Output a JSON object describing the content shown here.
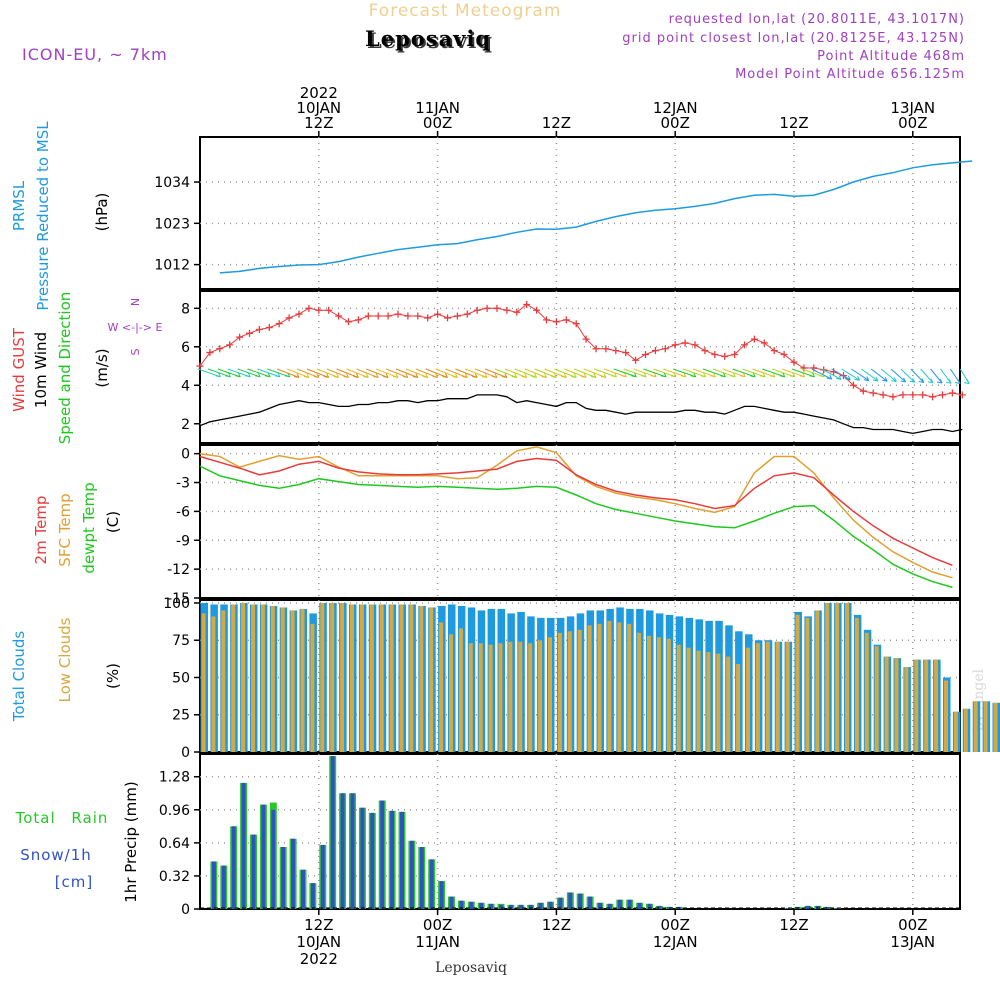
{
  "header": {
    "title_small": "Forecast Meteogram",
    "location": "Leposaviq",
    "model": "ICON-EU, ~ 7km",
    "requested": "requested lon,lat (20.8011E, 43.1017N)",
    "grid_point": "grid point closest lon,lat (20.8125E, 43.125N)",
    "point_alt": "Point Altitude 468m",
    "model_alt": "Model Point Altitude 656.125m",
    "footer_location": "Leposaviq",
    "credit": "by Angel"
  },
  "time_axis": {
    "top": [
      {
        "t": 12,
        "lines": [
          "2022",
          "10JAN",
          "12Z"
        ]
      },
      {
        "t": 24,
        "lines": [
          "11JAN",
          "00Z"
        ]
      },
      {
        "t": 36,
        "lines": [
          "12Z"
        ]
      },
      {
        "t": 48,
        "lines": [
          "12JAN",
          "00Z"
        ]
      },
      {
        "t": 60,
        "lines": [
          "12Z"
        ]
      },
      {
        "t": 72,
        "lines": [
          "13JAN",
          "00Z"
        ]
      }
    ],
    "bottom": [
      {
        "t": 12,
        "lines": [
          "12Z",
          "10JAN",
          "2022"
        ]
      },
      {
        "t": 24,
        "lines": [
          "00Z",
          "11JAN"
        ]
      },
      {
        "t": 36,
        "lines": [
          "12Z"
        ]
      },
      {
        "t": 48,
        "lines": [
          "00Z",
          "12JAN"
        ]
      },
      {
        "t": 60,
        "lines": [
          "12Z"
        ]
      },
      {
        "t": 72,
        "lines": [
          "00Z",
          "13JAN"
        ]
      }
    ]
  },
  "labels": {
    "p1": {
      "a": "PRMSL",
      "b": "Pressure Reduced to MSL",
      "unit": "(hPa)"
    },
    "p2": {
      "a": "Wind GUST",
      "b": "10m Wind",
      "c": "Speed and Direction",
      "unit": "(m/s)",
      "compass_n": "N",
      "compass_we": "W <-|-> E",
      "compass_s": "S"
    },
    "p3": {
      "a": "2m Temp",
      "b": "SFC Temp",
      "c": "dewpt Temp",
      "unit": "(C)"
    },
    "p4": {
      "a": "Total Clouds",
      "b": "Low Clouds",
      "unit": "(%)"
    },
    "p5": {
      "a": "Total Rain",
      "b": "Snow/1h",
      "c": "[cm]",
      "unit": "1hr Precip (mm)"
    }
  },
  "colors": {
    "pressure": "#1e9be0",
    "gust": "#e83c3c",
    "wind": "#000000",
    "temp2m": "#e83c3c",
    "sfc": "#e0a030",
    "dewpt": "#1ec81e",
    "total_clouds": "#1e9be0",
    "low_clouds": "#d8a840",
    "rain": "#28c828",
    "snow": "#3050c8",
    "meta": "#a040c0",
    "title_small": "#f0d090"
  },
  "chart_data": [
    {
      "type": "line",
      "name": "PRMSL",
      "ylabel": "(hPa)",
      "ylim": [
        1005.5,
        1046
      ],
      "yticks": [
        1012,
        1023,
        1034
      ],
      "x_hours": [
        2,
        4,
        6,
        8,
        10,
        12,
        14,
        16,
        18,
        20,
        22,
        24,
        26,
        28,
        30,
        32,
        34,
        36,
        38,
        40,
        42,
        44,
        46,
        48,
        50,
        52,
        54,
        56,
        58,
        60,
        62,
        64,
        66,
        68,
        70,
        72,
        74,
        76,
        78
      ],
      "values": [
        1009.8,
        1010.2,
        1011,
        1011.5,
        1011.9,
        1012,
        1012.8,
        1014,
        1015,
        1016,
        1016.6,
        1017.3,
        1017.6,
        1018.6,
        1019.5,
        1020.6,
        1021.5,
        1021.4,
        1022,
        1023.5,
        1024.8,
        1025.8,
        1026.5,
        1026.9,
        1027.5,
        1028.3,
        1029.6,
        1030.5,
        1030.7,
        1030.2,
        1030.5,
        1032,
        1034,
        1035.5,
        1036.5,
        1037.8,
        1038.6,
        1039.1,
        1039.6
      ]
    },
    {
      "type": "line",
      "name": "Wind",
      "ylabel": "(m/s)",
      "ylim": [
        1,
        8.9
      ],
      "yticks": [
        2,
        4,
        6,
        8
      ],
      "x_hours": [
        0,
        1,
        2,
        3,
        4,
        5,
        6,
        7,
        8,
        9,
        10,
        11,
        12,
        13,
        14,
        15,
        16,
        17,
        18,
        19,
        20,
        21,
        22,
        23,
        24,
        25,
        26,
        27,
        28,
        29,
        30,
        31,
        32,
        33,
        34,
        35,
        36,
        37,
        38,
        39,
        40,
        41,
        42,
        43,
        44,
        45,
        46,
        47,
        48,
        49,
        50,
        51,
        52,
        53,
        54,
        55,
        56,
        57,
        58,
        59,
        60,
        61,
        62,
        63,
        64,
        65,
        66,
        67,
        68,
        69,
        70,
        71,
        72,
        73,
        74,
        75,
        76,
        77
      ],
      "gust": [
        5.0,
        5.7,
        5.9,
        6.1,
        6.5,
        6.7,
        6.9,
        7.0,
        7.2,
        7.5,
        7.7,
        8.0,
        7.9,
        7.9,
        7.6,
        7.3,
        7.4,
        7.6,
        7.6,
        7.6,
        7.7,
        7.6,
        7.6,
        7.5,
        7.7,
        7.5,
        7.6,
        7.7,
        7.9,
        8.0,
        8.0,
        7.9,
        7.8,
        8.2,
        7.9,
        7.4,
        7.3,
        7.4,
        7.2,
        6.4,
        5.9,
        5.9,
        5.8,
        5.7,
        5.3,
        5.6,
        5.8,
        5.9,
        6.1,
        6.2,
        6.1,
        5.8,
        5.6,
        5.5,
        5.6,
        6.1,
        6.4,
        6.2,
        5.8,
        5.6,
        5.2,
        4.9,
        4.9,
        4.8,
        4.7,
        4.5,
        4.0,
        3.7,
        3.6,
        3.5,
        3.4,
        3.5,
        3.5,
        3.5,
        3.4,
        3.5,
        3.6,
        3.5
      ],
      "wind": [
        1.9,
        2.1,
        2.2,
        2.3,
        2.4,
        2.5,
        2.6,
        2.8,
        3.0,
        3.1,
        3.2,
        3.1,
        3.1,
        3.0,
        2.9,
        2.9,
        3.0,
        3.0,
        3.1,
        3.1,
        3.2,
        3.2,
        3.1,
        3.2,
        3.2,
        3.3,
        3.3,
        3.3,
        3.5,
        3.5,
        3.5,
        3.4,
        3.1,
        3.2,
        3.1,
        3.0,
        2.9,
        3.1,
        3.1,
        2.8,
        2.7,
        2.7,
        2.6,
        2.5,
        2.6,
        2.6,
        2.6,
        2.6,
        2.6,
        2.7,
        2.7,
        2.6,
        2.6,
        2.5,
        2.7,
        2.9,
        2.9,
        2.8,
        2.7,
        2.6,
        2.6,
        2.5,
        2.4,
        2.3,
        2.2,
        2.0,
        1.8,
        1.8,
        1.7,
        1.7,
        1.7,
        1.6,
        1.5,
        1.6,
        1.7,
        1.7,
        1.6,
        1.7
      ]
    },
    {
      "type": "line",
      "name": "Temperature",
      "ylabel": "(C)",
      "ylim": [
        -15,
        0.9
      ],
      "yticks": [
        0,
        -3,
        -6,
        -9,
        -12,
        -15
      ],
      "x_hours": [
        0,
        2,
        4,
        6,
        8,
        10,
        12,
        14,
        16,
        18,
        20,
        22,
        24,
        26,
        28,
        30,
        32,
        34,
        36,
        38,
        40,
        42,
        44,
        46,
        48,
        50,
        52,
        54,
        56,
        58,
        60,
        62,
        64,
        66,
        68,
        70,
        72,
        74,
        76
      ],
      "temp2m": [
        -0.3,
        -0.9,
        -1.5,
        -2.2,
        -1.8,
        -1.1,
        -0.8,
        -1.5,
        -1.9,
        -2.1,
        -2.2,
        -2.2,
        -2.1,
        -2.0,
        -1.8,
        -1.6,
        -0.8,
        -0.5,
        -0.7,
        -2.2,
        -3.2,
        -3.9,
        -4.3,
        -4.6,
        -4.8,
        -5.2,
        -5.7,
        -5.4,
        -3.6,
        -2.3,
        -2.0,
        -2.5,
        -4.3,
        -6.0,
        -7.5,
        -8.8,
        -9.8,
        -10.8,
        -11.6
      ],
      "sfc": [
        0.0,
        -0.3,
        -1.4,
        -0.8,
        -0.2,
        -0.6,
        -0.3,
        -1.4,
        -2.3,
        -2.3,
        -2.3,
        -2.3,
        -2.3,
        -2.6,
        -2.5,
        -1.2,
        0.3,
        0.7,
        0.1,
        -2.3,
        -3.4,
        -4.1,
        -4.5,
        -4.8,
        -5.2,
        -5.7,
        -6.1,
        -5.5,
        -2.0,
        -0.3,
        -0.3,
        -2.0,
        -4.6,
        -6.9,
        -8.7,
        -10.2,
        -11.3,
        -12.3,
        -12.9
      ],
      "dewpt": [
        -1.3,
        -2.3,
        -2.8,
        -3.3,
        -3.6,
        -3.2,
        -2.6,
        -2.9,
        -3.2,
        -3.3,
        -3.4,
        -3.5,
        -3.4,
        -3.5,
        -3.6,
        -3.7,
        -3.6,
        -3.4,
        -3.5,
        -4.3,
        -5.2,
        -5.8,
        -6.2,
        -6.6,
        -7.0,
        -7.3,
        -7.6,
        -7.7,
        -7.0,
        -6.2,
        -5.5,
        -5.4,
        -6.9,
        -8.6,
        -10.0,
        -11.5,
        -12.5,
        -13.3,
        -13.9
      ]
    },
    {
      "type": "bar",
      "name": "Clouds",
      "ylabel": "(%)",
      "ylim": [
        0,
        102
      ],
      "yticks": [
        0,
        25,
        50,
        75,
        100
      ],
      "x_hours_start": 0,
      "total": [
        100,
        99,
        99,
        99,
        100,
        99,
        99,
        98,
        97,
        95,
        96,
        93,
        100,
        100,
        100,
        99,
        99,
        99,
        99,
        99,
        99,
        99,
        98,
        97,
        98,
        99,
        98,
        97,
        95,
        96,
        96,
        93,
        94,
        91,
        90,
        90,
        90,
        91,
        93,
        95,
        95,
        96,
        97,
        96,
        96,
        95,
        93,
        92,
        91,
        90,
        89,
        88,
        88,
        85,
        81,
        79,
        75,
        75,
        74,
        74,
        94,
        91,
        95,
        100,
        100,
        100,
        92,
        82,
        72,
        64,
        63,
        57,
        62,
        62,
        62,
        50,
        27,
        29,
        34,
        34,
        33
      ],
      "low": [
        93,
        91,
        95,
        99,
        100,
        99,
        99,
        98,
        97,
        95,
        96,
        86,
        100,
        100,
        100,
        99,
        99,
        99,
        99,
        99,
        99,
        99,
        98,
        97,
        87,
        79,
        83,
        73,
        73,
        72,
        73,
        74,
        74,
        73,
        75,
        77,
        80,
        81,
        82,
        85,
        86,
        88,
        87,
        86,
        80,
        78,
        77,
        76,
        72,
        70,
        68,
        67,
        66,
        64,
        59,
        70,
        73,
        74,
        74,
        74,
        92,
        90,
        95,
        100,
        100,
        100,
        90,
        80,
        71,
        64,
        63,
        57,
        62,
        62,
        62,
        48,
        27,
        29,
        34,
        34,
        33
      ]
    },
    {
      "type": "bar",
      "name": "Precip",
      "ylabel": "1hr Precip (mm)",
      "ylim": [
        0,
        1.5
      ],
      "yticks": [
        0,
        0.32,
        0.64,
        0.96,
        1.28
      ],
      "x_hours_start": 1,
      "rain": [
        0.46,
        0.42,
        0.8,
        1.22,
        0.72,
        1.01,
        1.03,
        0.6,
        0.68,
        0.38,
        0.25,
        0.62,
        1.48,
        1.12,
        1.12,
        0.98,
        0.93,
        1.05,
        0.95,
        0.94,
        0.66,
        0.6,
        0.48,
        0.27,
        0.12,
        0.08,
        0.07,
        0.06,
        0.05,
        0.05,
        0.04,
        0.04,
        0.04,
        0.06,
        0.07,
        0.11,
        0.16,
        0.15,
        0.12,
        0.06,
        0.05,
        0.09,
        0.09,
        0.06,
        0.05,
        0.03,
        0.02,
        0.02,
        0.0,
        0.0,
        0.0,
        0.0,
        0.0,
        0.0,
        0.0,
        0.0,
        0.0,
        0.0,
        0.01,
        0.02,
        0.03,
        0.03,
        0.02,
        0.01,
        0.0,
        0.0,
        0.0,
        0.0,
        0.0,
        0.0,
        0.0,
        0.0,
        0.0,
        0.0,
        0.0,
        0.0
      ],
      "snow": [
        0.46,
        0.42,
        0.8,
        1.22,
        0.72,
        1.01,
        0.96,
        0.6,
        0.68,
        0.38,
        0.25,
        0.62,
        1.48,
        1.12,
        1.12,
        0.98,
        0.93,
        1.05,
        0.95,
        0.94,
        0.66,
        0.6,
        0.48,
        0.27,
        0.12,
        0.08,
        0.07,
        0.06,
        0.05,
        0.04,
        0.04,
        0.04,
        0.04,
        0.06,
        0.07,
        0.11,
        0.16,
        0.15,
        0.12,
        0.06,
        0.05,
        0.09,
        0.09,
        0.06,
        0.05,
        0.03,
        0.02,
        0.02,
        0.0,
        0.0,
        0.0,
        0.0,
        0.0,
        0.0,
        0.0,
        0.0,
        0.0,
        0.0,
        0.01,
        0.02,
        0.03,
        0.03,
        0.02,
        0.01,
        0.0,
        0.0,
        0.0,
        0.0,
        0.0,
        0.0,
        0.0,
        0.0,
        0.0,
        0.0,
        0.0,
        0.0
      ]
    }
  ]
}
